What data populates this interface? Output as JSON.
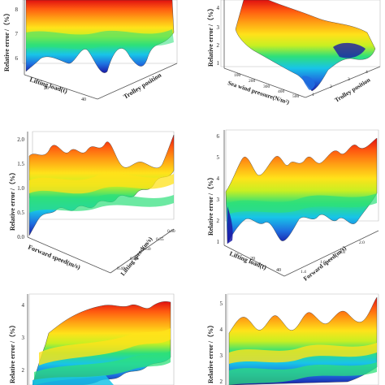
{
  "figure": {
    "palette": [
      "#1a1aa6",
      "#1f6fe0",
      "#18c4e8",
      "#2ee07a",
      "#c8ef22",
      "#ffe21a",
      "#ffa114",
      "#ff5a10",
      "#e01010"
    ],
    "box_color": "#555555"
  },
  "chart_data": [
    {
      "id": "top-left",
      "type": "surface3d",
      "zlabel": "Relative error /（%）",
      "xlabel": "Lifting load(t)",
      "ylabel": "Trolley position",
      "zticks": [
        "8",
        "7",
        "6"
      ],
      "xticks": [
        "20",
        "40"
      ],
      "yticks": [],
      "grid": true
    },
    {
      "id": "top-right",
      "type": "surface3d",
      "zlabel": "Relative error /（%）",
      "xlabel": "Sea wind pressure(N/m²)",
      "ylabel": "Trolley position",
      "zticks": [
        "4",
        "3",
        "2",
        "1"
      ],
      "xticks": [
        "100",
        "200",
        "300",
        "400",
        "500"
      ],
      "yticks": [
        "1",
        "2",
        "3",
        "4"
      ],
      "grid": true
    },
    {
      "id": "middle-left",
      "type": "surface3d",
      "zlabel": "Relative error /（%）",
      "xlabel": "Forward speed(m/s)",
      "ylabel": "Lifting speed(m/s)",
      "zticks": [
        "2.0",
        "1.5",
        "1.0",
        "0.5",
        "0.0"
      ],
      "xticks": [
        "0.2",
        "0.4",
        "0.6",
        "0.8"
      ],
      "yticks": [
        "0.40",
        "0.45",
        "0.50",
        "0.55",
        "0.60"
      ],
      "grid": true
    },
    {
      "id": "middle-right",
      "type": "surface3d",
      "zlabel": "Relative error /（%）",
      "xlabel": "Lifting load(t)",
      "ylabel": "Forward speed(m/s)",
      "zticks": [
        "6",
        "5",
        "4",
        "3",
        "2",
        "1"
      ],
      "xticks": [
        "20",
        "40"
      ],
      "yticks": [
        "1.4",
        "1.6",
        "1.8",
        "2.0"
      ],
      "grid": true
    },
    {
      "id": "bottom-left",
      "type": "surface3d",
      "zlabel": "Relative error /（%）",
      "xlabel": "",
      "ylabel": "",
      "zticks": [
        "4",
        "3",
        "2"
      ],
      "xticks": [],
      "yticks": [],
      "grid": true
    },
    {
      "id": "bottom-right",
      "type": "surface3d",
      "zlabel": "Relative error /（%）",
      "xlabel": "",
      "ylabel": "",
      "zticks": [
        "5",
        "4",
        "3",
        "2"
      ],
      "xticks": [],
      "yticks": [],
      "grid": true
    }
  ]
}
